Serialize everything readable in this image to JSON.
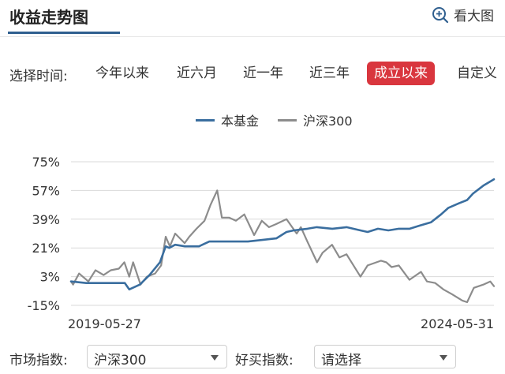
{
  "header": {
    "title": "收益走势图",
    "zoom_label": "看大图",
    "zoom_icon": "zoom-in-icon"
  },
  "range": {
    "label": "选择时间:",
    "options": [
      "今年以来",
      "近六月",
      "近一年",
      "近三年",
      "成立以来",
      "自定义"
    ],
    "active_index": 4
  },
  "colors": {
    "fund": "#3a6e9f",
    "index": "#8c8c8c",
    "active": "#d9363e"
  },
  "filters": {
    "market_label": "市场指数:",
    "market_value": "沪深300",
    "buy_label": "好买指数:",
    "buy_value": "请选择"
  },
  "chart_data": {
    "type": "line",
    "title": "",
    "xlabel": "",
    "ylabel": "",
    "y_ticks": [
      "75%",
      "57%",
      "39%",
      "21%",
      "3%",
      "-15%"
    ],
    "y_tick_values": [
      75,
      57,
      39,
      21,
      3,
      -15
    ],
    "ylim": [
      -15,
      75
    ],
    "x_range_labels": [
      "2019-05-27",
      "2024-05-31"
    ],
    "x_range": [
      "2019-05-27",
      "2024-05-31"
    ],
    "grid": true,
    "legend_position": "top-center",
    "series": [
      {
        "name": "本基金",
        "color": "#3a6e9f",
        "points": [
          [
            "2019-05-27",
            0
          ],
          [
            "2019-08-01",
            -1
          ],
          [
            "2019-11-01",
            -1
          ],
          [
            "2020-01-15",
            -1
          ],
          [
            "2020-02-03",
            -5
          ],
          [
            "2020-03-20",
            -2
          ],
          [
            "2020-05-01",
            4
          ],
          [
            "2020-06-15",
            12
          ],
          [
            "2020-07-10",
            22
          ],
          [
            "2020-07-25",
            21
          ],
          [
            "2020-08-20",
            23
          ],
          [
            "2020-10-01",
            22
          ],
          [
            "2020-12-01",
            22
          ],
          [
            "2021-01-15",
            25
          ],
          [
            "2021-03-01",
            25
          ],
          [
            "2021-05-01",
            25
          ],
          [
            "2021-07-01",
            25
          ],
          [
            "2021-09-01",
            26
          ],
          [
            "2021-11-01",
            27
          ],
          [
            "2021-12-15",
            31
          ],
          [
            "2022-01-15",
            32
          ],
          [
            "2022-03-15",
            33
          ],
          [
            "2022-04-25",
            34
          ],
          [
            "2022-07-01",
            33
          ],
          [
            "2022-09-01",
            34
          ],
          [
            "2022-10-31",
            32
          ],
          [
            "2022-12-01",
            31
          ],
          [
            "2023-01-15",
            33
          ],
          [
            "2023-03-01",
            32
          ],
          [
            "2023-04-15",
            33
          ],
          [
            "2023-06-01",
            33
          ],
          [
            "2023-07-15",
            35
          ],
          [
            "2023-09-01",
            37
          ],
          [
            "2023-10-15",
            42
          ],
          [
            "2023-11-15",
            46
          ],
          [
            "2024-01-01",
            49
          ],
          [
            "2024-02-05",
            51
          ],
          [
            "2024-03-01",
            55
          ],
          [
            "2024-04-15",
            60
          ],
          [
            "2024-05-31",
            64
          ]
        ]
      },
      {
        "name": "沪深300",
        "color": "#8c8c8c",
        "points": [
          [
            "2019-05-27",
            0
          ],
          [
            "2019-06-05",
            -2
          ],
          [
            "2019-07-01",
            5
          ],
          [
            "2019-08-10",
            0
          ],
          [
            "2019-09-10",
            7
          ],
          [
            "2019-10-15",
            4
          ],
          [
            "2019-11-15",
            7
          ],
          [
            "2019-12-20",
            8
          ],
          [
            "2020-01-13",
            12
          ],
          [
            "2020-02-03",
            3
          ],
          [
            "2020-02-20",
            12
          ],
          [
            "2020-03-23",
            -2
          ],
          [
            "2020-04-20",
            3
          ],
          [
            "2020-05-25",
            5
          ],
          [
            "2020-06-20",
            10
          ],
          [
            "2020-07-10",
            28
          ],
          [
            "2020-07-28",
            22
          ],
          [
            "2020-08-20",
            30
          ],
          [
            "2020-09-30",
            24
          ],
          [
            "2020-10-20",
            28
          ],
          [
            "2020-11-20",
            33
          ],
          [
            "2020-12-25",
            38
          ],
          [
            "2021-01-20",
            48
          ],
          [
            "2021-02-18",
            57
          ],
          [
            "2021-03-10",
            40
          ],
          [
            "2021-04-10",
            40
          ],
          [
            "2021-05-10",
            38
          ],
          [
            "2021-06-15",
            42
          ],
          [
            "2021-07-28",
            29
          ],
          [
            "2021-08-30",
            38
          ],
          [
            "2021-09-30",
            34
          ],
          [
            "2021-11-01",
            36
          ],
          [
            "2021-12-15",
            39
          ],
          [
            "2022-01-28",
            30
          ],
          [
            "2022-02-15",
            34
          ],
          [
            "2022-03-15",
            25
          ],
          [
            "2022-04-26",
            12
          ],
          [
            "2022-05-20",
            18
          ],
          [
            "2022-06-30",
            23
          ],
          [
            "2022-08-01",
            15
          ],
          [
            "2022-09-01",
            17
          ],
          [
            "2022-10-31",
            3
          ],
          [
            "2022-12-01",
            10
          ],
          [
            "2023-01-28",
            13
          ],
          [
            "2023-02-20",
            12
          ],
          [
            "2023-03-15",
            9
          ],
          [
            "2023-04-15",
            10
          ],
          [
            "2023-05-31",
            1
          ],
          [
            "2023-07-20",
            6
          ],
          [
            "2023-08-15",
            0
          ],
          [
            "2023-09-20",
            -1
          ],
          [
            "2023-10-25",
            -5
          ],
          [
            "2023-12-01",
            -8
          ],
          [
            "2024-01-15",
            -12
          ],
          [
            "2024-02-05",
            -13
          ],
          [
            "2024-03-05",
            -4
          ],
          [
            "2024-04-15",
            -2
          ],
          [
            "2024-05-15",
            0
          ],
          [
            "2024-05-31",
            -3
          ]
        ]
      }
    ]
  }
}
